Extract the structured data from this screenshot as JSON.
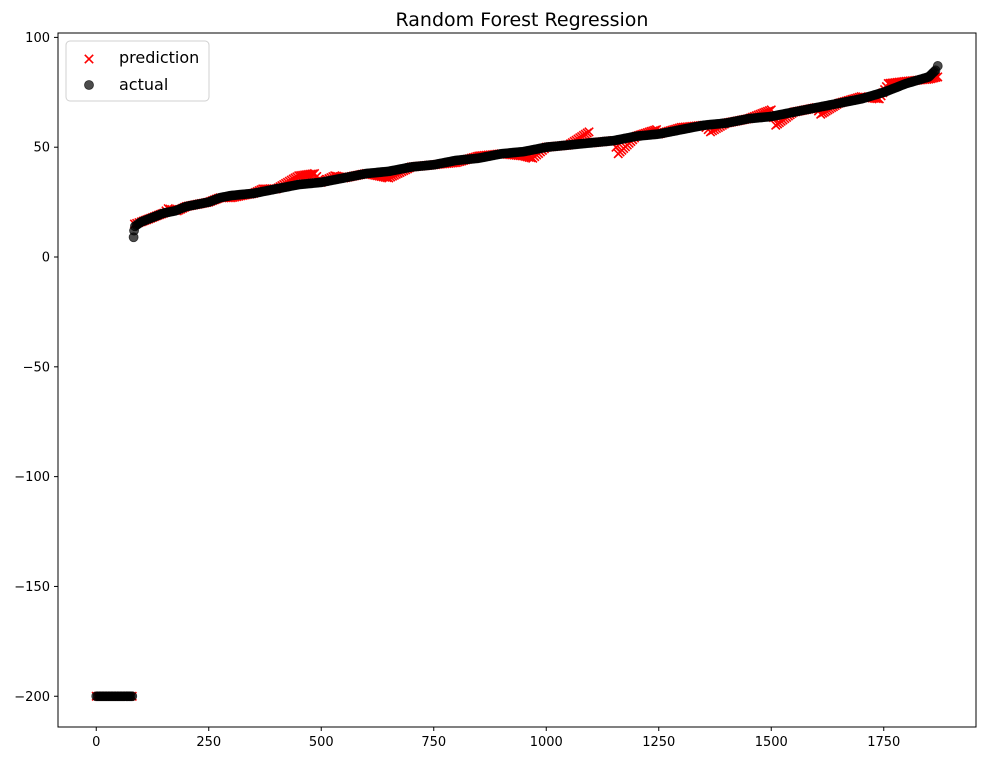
{
  "chart_data": {
    "type": "scatter",
    "title": "Random Forest Regression",
    "xlabel": "",
    "ylabel": "",
    "xlim": [
      -85,
      1955
    ],
    "ylim": [
      -214,
      102
    ],
    "x_ticks": [
      0,
      250,
      500,
      750,
      1000,
      1250,
      1500,
      1750
    ],
    "y_ticks": [
      100,
      50,
      0,
      -50,
      -100,
      -150,
      -200
    ],
    "y_tick_labels": [
      "100",
      "50",
      "0",
      "−50",
      "−100",
      "−150",
      "−200"
    ],
    "legend_position": "upper-left",
    "grid": false,
    "series": [
      {
        "name": "prediction",
        "marker": "x",
        "color": "#ff0000",
        "points": [
          [
            0,
            -200
          ],
          [
            10,
            -200
          ],
          [
            20,
            -200
          ],
          [
            30,
            -200
          ],
          [
            40,
            -200
          ],
          [
            50,
            -200
          ],
          [
            60,
            -200
          ],
          [
            70,
            -200
          ],
          [
            80,
            -200
          ],
          [
            85,
            15
          ],
          [
            100,
            16
          ],
          [
            125,
            18
          ],
          [
            150,
            20
          ],
          [
            160,
            22
          ],
          [
            180,
            21
          ],
          [
            200,
            23
          ],
          [
            250,
            25
          ],
          [
            275,
            27
          ],
          [
            300,
            27
          ],
          [
            350,
            29
          ],
          [
            370,
            31
          ],
          [
            400,
            31
          ],
          [
            450,
            37
          ],
          [
            485,
            38
          ],
          [
            500,
            34
          ],
          [
            530,
            37
          ],
          [
            550,
            36
          ],
          [
            600,
            38
          ],
          [
            650,
            36
          ],
          [
            700,
            41
          ],
          [
            750,
            42
          ],
          [
            800,
            43
          ],
          [
            850,
            46
          ],
          [
            900,
            47
          ],
          [
            950,
            46
          ],
          [
            970,
            45
          ],
          [
            1000,
            50
          ],
          [
            1050,
            51
          ],
          [
            1095,
            57
          ],
          [
            1100,
            52
          ],
          [
            1150,
            53
          ],
          [
            1160,
            47
          ],
          [
            1200,
            55
          ],
          [
            1245,
            58
          ],
          [
            1250,
            56
          ],
          [
            1300,
            59
          ],
          [
            1350,
            60
          ],
          [
            1365,
            57
          ],
          [
            1400,
            61
          ],
          [
            1450,
            63
          ],
          [
            1500,
            67
          ],
          [
            1510,
            60
          ],
          [
            1550,
            66
          ],
          [
            1600,
            68
          ],
          [
            1610,
            65
          ],
          [
            1650,
            70
          ],
          [
            1700,
            73
          ],
          [
            1740,
            72
          ],
          [
            1760,
            79
          ],
          [
            1800,
            80
          ],
          [
            1850,
            81
          ],
          [
            1870,
            82
          ]
        ]
      },
      {
        "name": "actual",
        "marker": "o",
        "color": "#000000",
        "points": [
          [
            0,
            -200
          ],
          [
            10,
            -200
          ],
          [
            20,
            -200
          ],
          [
            30,
            -200
          ],
          [
            40,
            -200
          ],
          [
            50,
            -200
          ],
          [
            60,
            -200
          ],
          [
            70,
            -200
          ],
          [
            80,
            -200
          ],
          [
            83,
            9
          ],
          [
            84,
            12
          ],
          [
            86,
            14
          ],
          [
            100,
            16
          ],
          [
            125,
            18
          ],
          [
            150,
            20
          ],
          [
            175,
            21
          ],
          [
            200,
            23
          ],
          [
            250,
            25
          ],
          [
            275,
            27
          ],
          [
            300,
            28
          ],
          [
            350,
            29
          ],
          [
            400,
            31
          ],
          [
            450,
            33
          ],
          [
            500,
            34
          ],
          [
            550,
            36
          ],
          [
            600,
            38
          ],
          [
            650,
            39
          ],
          [
            700,
            41
          ],
          [
            750,
            42
          ],
          [
            800,
            44
          ],
          [
            850,
            45
          ],
          [
            900,
            47
          ],
          [
            950,
            48
          ],
          [
            1000,
            50
          ],
          [
            1050,
            51
          ],
          [
            1100,
            52
          ],
          [
            1150,
            53
          ],
          [
            1200,
            55
          ],
          [
            1250,
            56
          ],
          [
            1300,
            58
          ],
          [
            1350,
            60
          ],
          [
            1400,
            61
          ],
          [
            1450,
            63
          ],
          [
            1500,
            64
          ],
          [
            1550,
            66
          ],
          [
            1600,
            68
          ],
          [
            1650,
            70
          ],
          [
            1700,
            72
          ],
          [
            1750,
            75
          ],
          [
            1800,
            79
          ],
          [
            1850,
            82
          ],
          [
            1865,
            85
          ],
          [
            1870,
            87
          ]
        ]
      }
    ]
  }
}
